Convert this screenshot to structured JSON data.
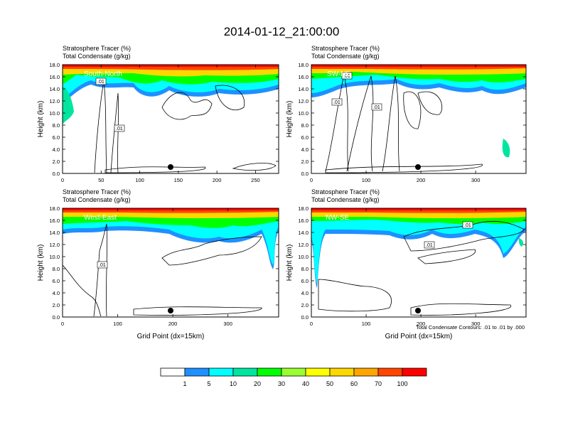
{
  "title": "2014-01-12_21:00:00",
  "colors": [
    "#ffffff",
    "#1e90ff",
    "#00ffff",
    "#00e5a0",
    "#00ff00",
    "#9aff32",
    "#ffff00",
    "#ffd700",
    "#ffa500",
    "#ff4500",
    "#ff0000"
  ],
  "colorbar": {
    "labels": [
      "1",
      "5",
      "10",
      "20",
      "30",
      "40",
      "50",
      "60",
      "70",
      "100"
    ]
  },
  "contour_note": "Total Condensate Contours: .01 to .01 by .000",
  "chart_data": [
    {
      "type": "heatmap",
      "name": "South-North",
      "label1": "Stratosphere Tracer   (%)",
      "label2": "Total Condensate   (g/kg)",
      "ylabel": "Height (km)",
      "xlabel": "",
      "xmax": 280,
      "xticks": [
        "0",
        "50",
        "100",
        "150",
        "200",
        "250"
      ],
      "yticks": [
        "0.0",
        "2.0",
        "4.0",
        "6.0",
        "8.0",
        "10.0",
        "12.0",
        "14.0",
        "16.0",
        "18.0"
      ],
      "contour_labels": [
        ".01",
        ".01"
      ],
      "ylim": [
        0,
        18
      ]
    },
    {
      "type": "heatmap",
      "name": "SW-NE",
      "label1": "Stratosphere Tracer   (%)",
      "label2": "Total Condensate   (g/kg)",
      "ylabel": "Height (km)",
      "xlabel": "",
      "xmax": 392,
      "xticks": [
        "0",
        "100",
        "200",
        "300"
      ],
      "yticks": [
        "0.0",
        "2.0",
        "4.0",
        "6.0",
        "8.0",
        "10.0",
        "12.0",
        "14.0",
        "16.0",
        "18.0"
      ],
      "contour_labels": [
        ".01",
        ".01",
        ".01"
      ],
      "ylim": [
        0,
        18
      ]
    },
    {
      "type": "heatmap",
      "name": "West-East",
      "label1": "Stratosphere Tracer   (%)",
      "label2": "Total Condensate   (g/kg)",
      "ylabel": "Height (km)",
      "xlabel": "Grid Point (dx=15km)",
      "xmax": 392,
      "xticks": [
        "0",
        "100",
        "200",
        "300"
      ],
      "yticks": [
        "0.0",
        "2.0",
        "4.0",
        "6.0",
        "8.0",
        "10.0",
        "12.0",
        "14.0",
        "16.0",
        "18.0"
      ],
      "contour_labels": [
        ".01",
        ".01"
      ],
      "ylim": [
        0,
        18
      ]
    },
    {
      "type": "heatmap",
      "name": "NW-SE",
      "label1": "Stratosphere Tracer   (%)",
      "label2": "Total Condensate   (g/kg)",
      "ylabel": "Height (km)",
      "xlabel": "Grid Point (dx=15km)",
      "xmax": 392,
      "xticks": [
        "0",
        "100",
        "200",
        "300"
      ],
      "yticks": [
        "0.0",
        "2.0",
        "4.0",
        "6.0",
        "8.0",
        "10.0",
        "12.0",
        "14.0",
        "16.0",
        "18.0"
      ],
      "contour_labels": [
        ".01",
        ".01"
      ],
      "ylim": [
        0,
        18
      ]
    }
  ]
}
